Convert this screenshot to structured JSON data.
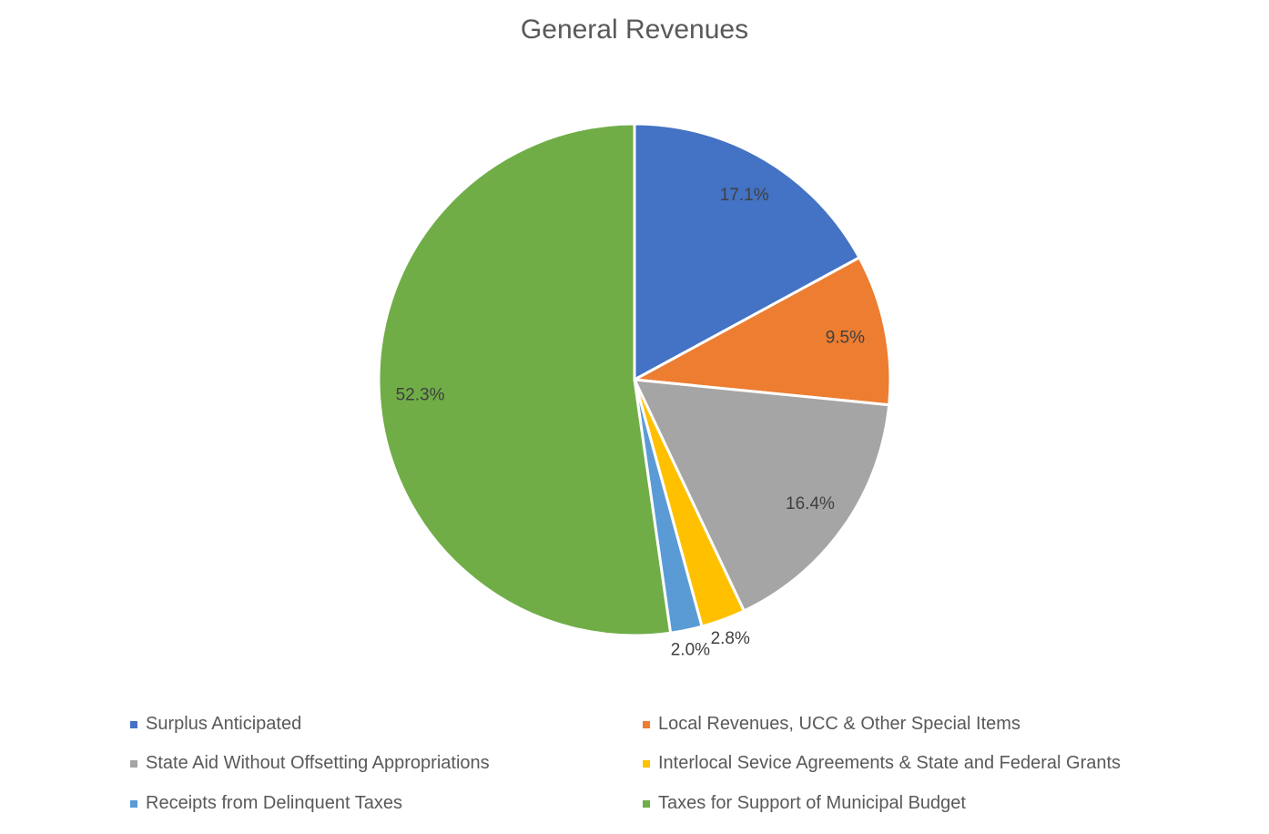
{
  "chart_data": {
    "type": "pie",
    "title": "General Revenues",
    "legend_position": "bottom",
    "slices": [
      {
        "label": "Surplus Anticipated",
        "value": 17.1,
        "data_label": "17.1%",
        "color": "#4472C4"
      },
      {
        "label": "Local Revenues, UCC & Other Special Items",
        "value": 9.5,
        "data_label": "9.5%",
        "color": "#ED7D31"
      },
      {
        "label": "State Aid Without Offsetting Appropriations",
        "value": 16.4,
        "data_label": "16.4%",
        "color": "#A5A5A5"
      },
      {
        "label": "Interlocal Sevice Agreements & State and Federal Grants",
        "value": 2.8,
        "data_label": "2.8%",
        "color": "#FFC000"
      },
      {
        "label": "Receipts from Delinquent Taxes",
        "value": 2.0,
        "data_label": "2.0%",
        "color": "#5B9BD5"
      },
      {
        "label": "Taxes for Support of Municipal Budget",
        "value": 52.3,
        "data_label": "52.3%",
        "color": "#70AD47"
      }
    ]
  }
}
